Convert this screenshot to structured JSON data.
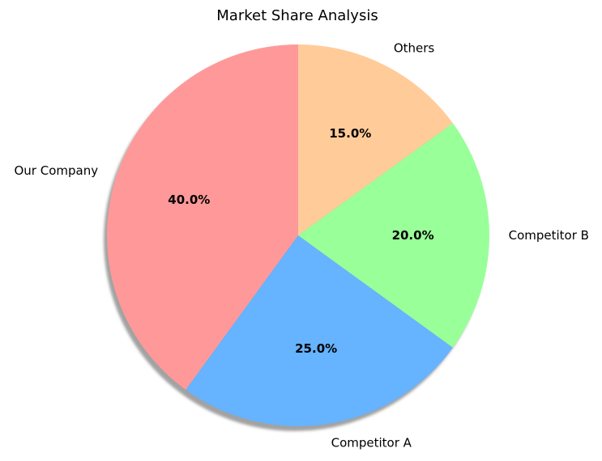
{
  "chart_data": {
    "type": "pie",
    "title": "Market Share Analysis",
    "labels": [
      "Our Company",
      "Competitor A",
      "Competitor B",
      "Others"
    ],
    "values": [
      40.0,
      25.0,
      20.0,
      15.0
    ],
    "pct_labels": [
      "40.0%",
      "25.0%",
      "20.0%",
      "15.0%"
    ],
    "colors": [
      "#ff9999",
      "#66b3ff",
      "#99ff99",
      "#ffcc99"
    ],
    "start_angle_deg": 90,
    "direction": "counterclockwise",
    "shadow": true,
    "legend": "none"
  }
}
